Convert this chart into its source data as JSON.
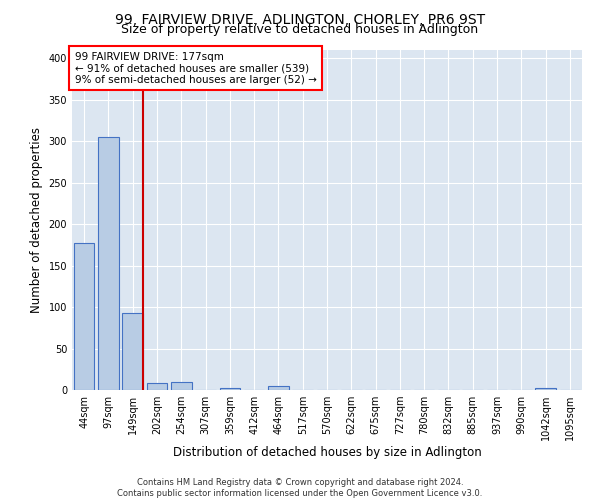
{
  "title": "99, FAIRVIEW DRIVE, ADLINGTON, CHORLEY, PR6 9ST",
  "subtitle": "Size of property relative to detached houses in Adlington",
  "xlabel": "Distribution of detached houses by size in Adlington",
  "ylabel": "Number of detached properties",
  "footer_line1": "Contains HM Land Registry data © Crown copyright and database right 2024.",
  "footer_line2": "Contains public sector information licensed under the Open Government Licence v3.0.",
  "bin_labels": [
    "44sqm",
    "97sqm",
    "149sqm",
    "202sqm",
    "254sqm",
    "307sqm",
    "359sqm",
    "412sqm",
    "464sqm",
    "517sqm",
    "570sqm",
    "622sqm",
    "675sqm",
    "727sqm",
    "780sqm",
    "832sqm",
    "885sqm",
    "937sqm",
    "990sqm",
    "1042sqm",
    "1095sqm"
  ],
  "bar_values": [
    177,
    305,
    93,
    9,
    10,
    0,
    3,
    0,
    5,
    0,
    0,
    0,
    0,
    0,
    0,
    0,
    0,
    0,
    0,
    3,
    0
  ],
  "bar_color": "#b8cce4",
  "bar_edge_color": "#4472c4",
  "annotation_line1": "99 FAIRVIEW DRIVE: 177sqm",
  "annotation_line2": "← 91% of detached houses are smaller (539)",
  "annotation_line3": "9% of semi-detached houses are larger (52) →",
  "vline_color": "#cc0000",
  "vline_pos": 2.43,
  "ylim": [
    0,
    410
  ],
  "yticks": [
    0,
    50,
    100,
    150,
    200,
    250,
    300,
    350,
    400
  ],
  "plot_bg_color": "#dce6f1",
  "grid_color": "#ffffff",
  "title_fontsize": 10,
  "subtitle_fontsize": 9,
  "axis_label_fontsize": 8.5,
  "tick_fontsize": 7,
  "annot_fontsize": 7.5,
  "footer_fontsize": 6
}
